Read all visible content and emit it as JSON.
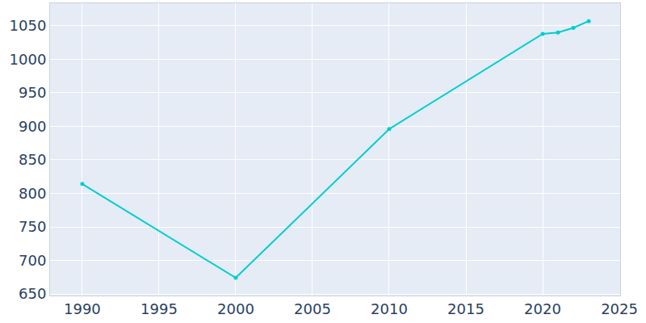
{
  "chart_data": {
    "type": "line",
    "x": [
      1990,
      2000,
      2010,
      2020,
      2021,
      2022,
      2023
    ],
    "values": [
      814,
      674,
      896,
      1038,
      1040,
      1047,
      1057
    ],
    "color": "#00cdd0",
    "marker": "circle",
    "xlim": [
      1987.9,
      2025.05
    ],
    "ylim": [
      647.6,
      1083.7
    ],
    "xticks": [
      1990,
      1995,
      2000,
      2005,
      2010,
      2015,
      2020,
      2025
    ],
    "yticks": [
      650,
      700,
      750,
      800,
      850,
      900,
      950,
      1000,
      1050
    ],
    "grid": true
  }
}
